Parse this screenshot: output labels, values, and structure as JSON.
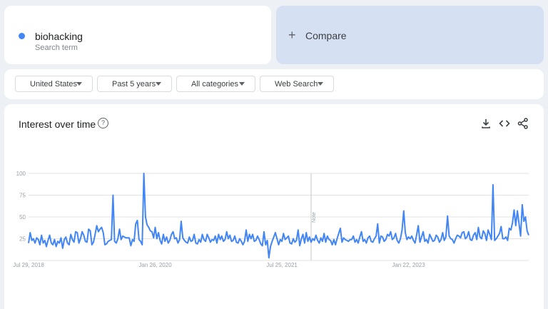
{
  "search_term": {
    "name": "biohacking",
    "subtitle": "Search term",
    "color": "#4285f4"
  },
  "compare": {
    "icon": "plus-icon",
    "label": "Compare"
  },
  "filters": {
    "region": "United States",
    "time_range": "Past 5 years",
    "category": "All categories",
    "search_type": "Web Search"
  },
  "section": {
    "title": "Interest over time",
    "help_icon": "help-circle-icon",
    "actions": [
      "download-icon",
      "embed-icon",
      "share-icon"
    ]
  },
  "chart_data": {
    "type": "line",
    "title": "",
    "xlabel": "",
    "ylabel": "",
    "ylim": [
      0,
      100
    ],
    "yticks": [
      25,
      50,
      75,
      100
    ],
    "x_tick_labels": [
      "Jul 29, 2018",
      "Jan 26, 2020",
      "Jul 25, 2021",
      "Jan 22, 2023"
    ],
    "x_tick_weeks": [
      0,
      78,
      156,
      234
    ],
    "annotation": {
      "label": "Note",
      "week": 174
    },
    "grid": true,
    "line_color": "#4285f4",
    "series": [
      {
        "name": "biohacking",
        "values": [
          20,
          32,
          23,
          25,
          20,
          26,
          24,
          18,
          29,
          20,
          23,
          16,
          23,
          29,
          20,
          18,
          24,
          16,
          22,
          20,
          26,
          14,
          24,
          27,
          20,
          18,
          30,
          24,
          21,
          33,
          32,
          20,
          25,
          33,
          29,
          22,
          21,
          36,
          34,
          18,
          21,
          30,
          40,
          33,
          36,
          38,
          32,
          18,
          19,
          22,
          23,
          24,
          75,
          22,
          20,
          25,
          36,
          24,
          28,
          27,
          26,
          26,
          26,
          17,
          24,
          22,
          42,
          46,
          24,
          22,
          18,
          100,
          50,
          41,
          38,
          34,
          33,
          26,
          38,
          25,
          32,
          23,
          19,
          30,
          22,
          27,
          20,
          23,
          30,
          33,
          25,
          26,
          20,
          24,
          45,
          26,
          23,
          21,
          20,
          27,
          22,
          23,
          30,
          20,
          19,
          24,
          21,
          30,
          24,
          22,
          30,
          26,
          21,
          24,
          23,
          28,
          20,
          30,
          24,
          28,
          22,
          24,
          33,
          25,
          29,
          22,
          23,
          28,
          21,
          20,
          25,
          22,
          18,
          22,
          35,
          22,
          30,
          25,
          30,
          22,
          23,
          28,
          24,
          19,
          17,
          33,
          18,
          23,
          3,
          16,
          22,
          27,
          32,
          25,
          18,
          24,
          22,
          31,
          24,
          26,
          28,
          20,
          19,
          25,
          21,
          23,
          35,
          17,
          25,
          30,
          20,
          32,
          22,
          27,
          21,
          25,
          23,
          29,
          23,
          20,
          26,
          22,
          31,
          21,
          28,
          24,
          23,
          18,
          24,
          18,
          25,
          31,
          37,
          21,
          26,
          24,
          23,
          22,
          24,
          24,
          28,
          21,
          24,
          20,
          27,
          33,
          22,
          24,
          20,
          26,
          28,
          22,
          21,
          25,
          28,
          42,
          20,
          28,
          27,
          22,
          24,
          30,
          28,
          33,
          24,
          26,
          31,
          23,
          20,
          25,
          35,
          57,
          32,
          24,
          27,
          25,
          28,
          23,
          20,
          30,
          40,
          21,
          27,
          33,
          22,
          24,
          20,
          30,
          26,
          22,
          23,
          29,
          27,
          21,
          24,
          32,
          23,
          27,
          51,
          28,
          25,
          24,
          20,
          25,
          29,
          28,
          26,
          32,
          33,
          25,
          27,
          33,
          24,
          23,
          29,
          32,
          24,
          38,
          27,
          25,
          34,
          31,
          23,
          35,
          30,
          24,
          87,
          23,
          25,
          28,
          31,
          39,
          25,
          25,
          27,
          23,
          37,
          35,
          43,
          58,
          40,
          57,
          43,
          28,
          64,
          45,
          50,
          34,
          29
        ]
      }
    ]
  }
}
